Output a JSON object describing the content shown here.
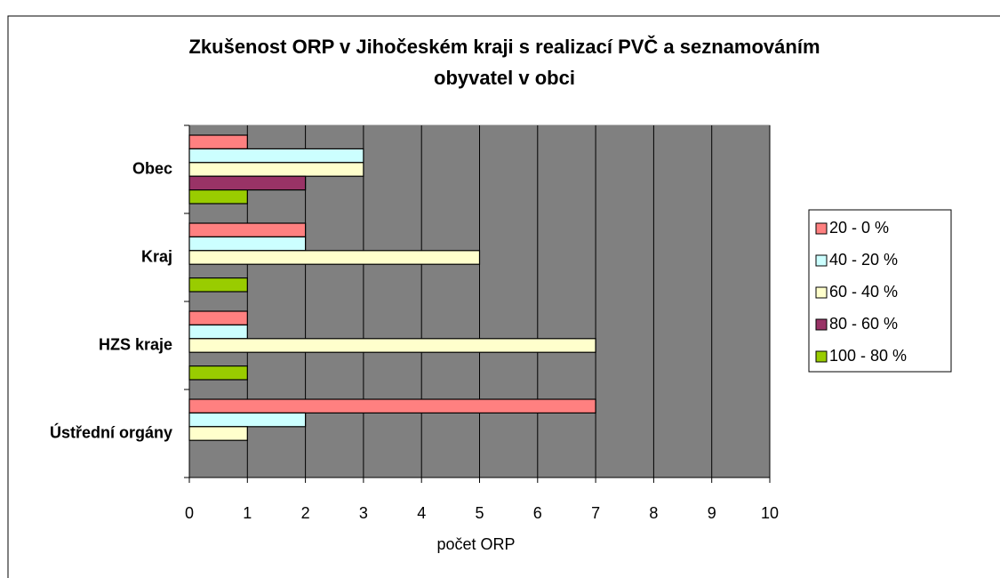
{
  "chart_data": {
    "type": "hbar",
    "title": "Zkušenost ORP v Jihočeském kraji s realizací PVČ a seznamováním obyvatel v obci",
    "xlabel": "počet ORP",
    "categories": [
      "Obec",
      "Kraj",
      "HZS kraje",
      "Ústřední orgány"
    ],
    "series": [
      {
        "name": "20 - 0 %",
        "color": "#ff8080",
        "values": [
          1,
          2,
          1,
          7
        ]
      },
      {
        "name": "40 - 20 %",
        "color": "#ccffff",
        "values": [
          3,
          2,
          1,
          2
        ]
      },
      {
        "name": "60 - 40 %",
        "color": "#ffffcc",
        "values": [
          3,
          5,
          7,
          1
        ]
      },
      {
        "name": "80 - 60 %",
        "color": "#993366",
        "values": [
          2,
          0,
          0,
          0
        ]
      },
      {
        "name": "100 - 80 %",
        "color": "#99cc00",
        "values": [
          1,
          1,
          1,
          0
        ]
      }
    ],
    "xlim": [
      0,
      10
    ],
    "xticks": [
      0,
      1,
      2,
      3,
      4,
      5,
      6,
      7,
      8,
      9,
      10
    ],
    "grid": true,
    "legend": "right"
  }
}
